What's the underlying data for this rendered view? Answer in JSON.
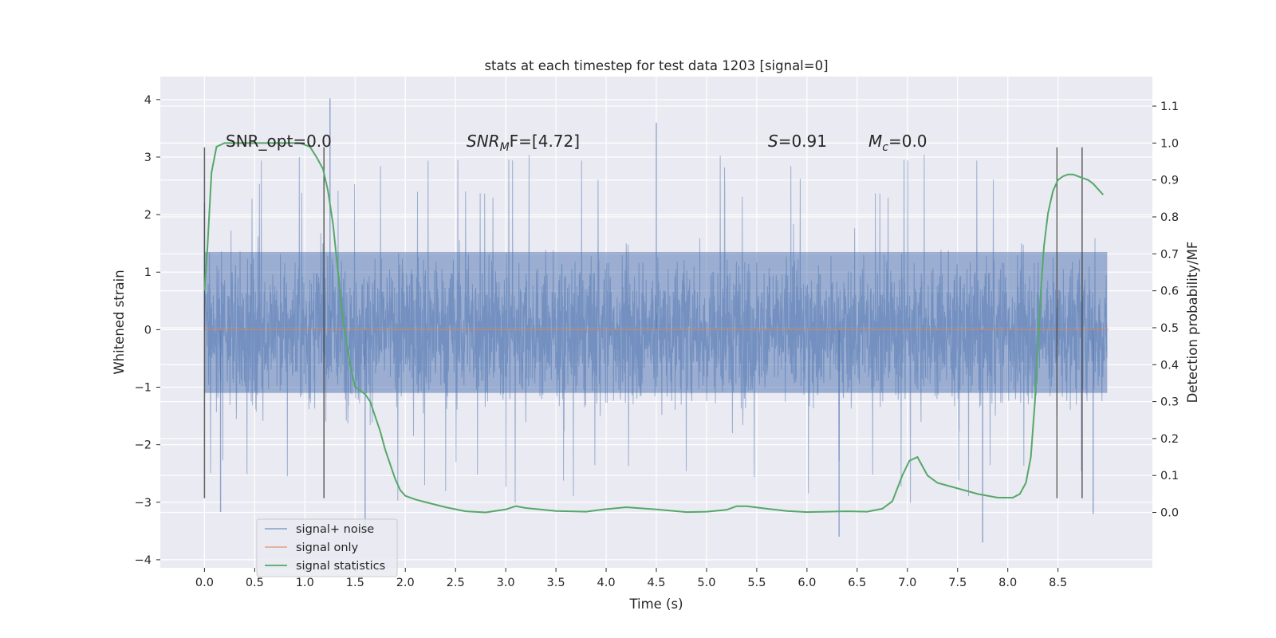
{
  "chart_data": {
    "type": "line",
    "title": "stats at each timestep for test data 1203 [signal=0]",
    "xlabel": "Time (s)",
    "ylabel": "Whitened strain",
    "y2label": "Detection probability/MF",
    "xlim": [
      -0.44,
      9.44
    ],
    "ylim": [
      -4.14,
      4.4
    ],
    "y2lim": [
      -0.15,
      1.18
    ],
    "x_ticks": [
      "0.0",
      "0.5",
      "1.0",
      "1.5",
      "2.0",
      "2.5",
      "3.0",
      "3.5",
      "4.0",
      "4.5",
      "5.0",
      "5.5",
      "6.0",
      "6.5",
      "7.0",
      "7.5",
      "8.0",
      "8.5"
    ],
    "y_ticks": [
      "4",
      "3",
      "2",
      "1",
      "0",
      "−1",
      "−2",
      "−3",
      "−4"
    ],
    "y2_ticks": [
      "1.1",
      "1.0",
      "0.9",
      "0.8",
      "0.7",
      "0.6",
      "0.5",
      "0.4",
      "0.3",
      "0.2",
      "0.1",
      "0.0"
    ],
    "grid": true,
    "legend_position": "lower-left",
    "legend": [
      "signal+ noise",
      "signal only",
      "signal statistics"
    ],
    "annotations": {
      "snr_opt": "SNR_opt=0.0",
      "snr_mf_main": "SNR",
      "snr_mf_sub": "M",
      "snr_mf_rest": "F=[4.72]",
      "s_main": "S",
      "s_rest": "=0.91",
      "mc_main": "M",
      "mc_sub": "c",
      "mc_rest": "=0.0"
    },
    "noise_series": {
      "name": "signal+ noise",
      "color": "#4c72b0",
      "t_start": 0.0,
      "t_end": 8.99,
      "y_min": -3.7,
      "y_max": 4.02,
      "dense_band": [
        -1.1,
        1.35
      ],
      "notable_spikes": [
        {
          "x": 0.0,
          "y": 2.2
        },
        {
          "x": 0.16,
          "y": -3.17
        },
        {
          "x": 1.25,
          "y": 4.02
        },
        {
          "x": 1.6,
          "y": -3.55
        },
        {
          "x": 4.5,
          "y": 3.6
        },
        {
          "x": 6.32,
          "y": -3.6
        },
        {
          "x": 7.75,
          "y": -3.7
        },
        {
          "x": 8.85,
          "y": -3.2
        }
      ]
    },
    "signal_series": {
      "name": "signal only",
      "color": "#dd8452",
      "x": [
        0.0,
        9.0
      ],
      "y": [
        0.0,
        0.0
      ]
    },
    "stat_series": {
      "name": "signal statistics",
      "color": "#55a868",
      "x": [
        0.0,
        0.03,
        0.07,
        0.12,
        0.2,
        0.3,
        0.4,
        0.6,
        0.8,
        0.95,
        1.05,
        1.12,
        1.18,
        1.23,
        1.28,
        1.33,
        1.38,
        1.45,
        1.5,
        1.55,
        1.6,
        1.65,
        1.7,
        1.75,
        1.8,
        1.85,
        1.9,
        1.95,
        2.0,
        2.1,
        2.2,
        2.4,
        2.6,
        2.8,
        3.0,
        3.1,
        3.2,
        3.5,
        3.8,
        4.0,
        4.2,
        4.5,
        4.8,
        5.0,
        5.2,
        5.3,
        5.4,
        5.6,
        5.8,
        6.0,
        6.2,
        6.4,
        6.6,
        6.75,
        6.85,
        6.95,
        7.02,
        7.1,
        7.2,
        7.3,
        7.5,
        7.7,
        7.9,
        8.05,
        8.12,
        8.18,
        8.23,
        8.27,
        8.3,
        8.33,
        8.36,
        8.4,
        8.45,
        8.5,
        8.55,
        8.6,
        8.65,
        8.7,
        8.75,
        8.8,
        8.85,
        8.9,
        8.95
      ],
      "y": [
        0.6,
        0.72,
        0.92,
        0.99,
        1.0,
        1.0,
        1.0,
        1.0,
        1.0,
        1.0,
        0.99,
        0.96,
        0.93,
        0.87,
        0.78,
        0.65,
        0.52,
        0.4,
        0.34,
        0.33,
        0.32,
        0.3,
        0.26,
        0.22,
        0.17,
        0.13,
        0.09,
        0.06,
        0.045,
        0.035,
        0.028,
        0.014,
        0.003,
        0.0,
        0.008,
        0.017,
        0.012,
        0.004,
        0.002,
        0.009,
        0.014,
        0.008,
        0.001,
        0.002,
        0.007,
        0.017,
        0.017,
        0.01,
        0.004,
        0.001,
        0.002,
        0.003,
        0.002,
        0.01,
        0.03,
        0.1,
        0.14,
        0.15,
        0.1,
        0.08,
        0.065,
        0.05,
        0.04,
        0.04,
        0.05,
        0.08,
        0.15,
        0.3,
        0.45,
        0.6,
        0.72,
        0.81,
        0.87,
        0.9,
        0.91,
        0.915,
        0.915,
        0.91,
        0.905,
        0.9,
        0.89,
        0.875,
        0.86
      ]
    },
    "vertical_lines": [
      {
        "x": 0.0,
        "y_bottom": -2.93,
        "y_top": 3.17
      },
      {
        "x": 1.19,
        "y_bottom": -2.93,
        "y_top": 3.17
      },
      {
        "x": 8.49,
        "y_bottom": -2.93,
        "y_top": 3.17
      },
      {
        "x": 8.74,
        "y_bottom": -2.93,
        "y_top": 3.17
      }
    ],
    "colors": {
      "background": "#eaeaf2",
      "grid": "#ffffff",
      "vertical_line": "#444444"
    }
  }
}
